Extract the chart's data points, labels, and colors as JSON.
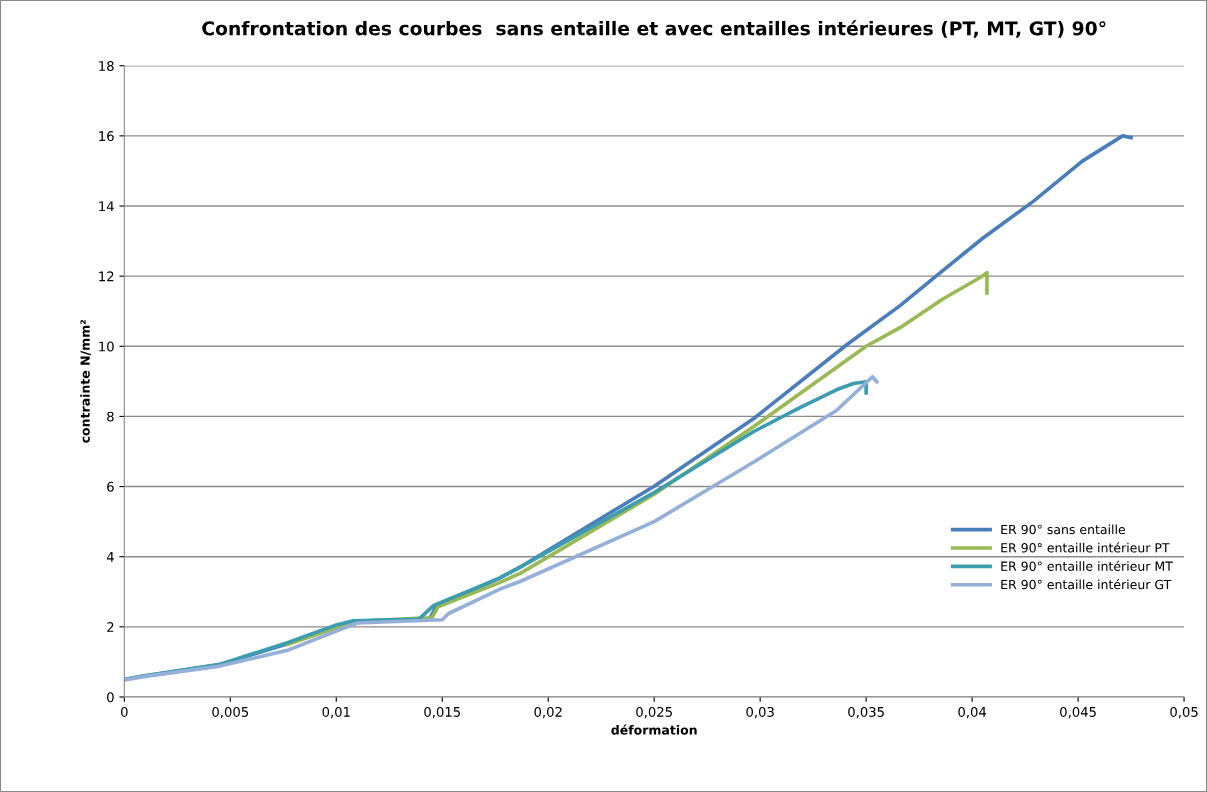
{
  "chart_data": {
    "type": "line",
    "title": "Confrontation des courbes  sans entaille et avec entailles intérieures (PT, MT, GT) 90°",
    "xlabel": "déformation",
    "ylabel": "contrainte N/mm²",
    "xlim": [
      0,
      0.05
    ],
    "xticks": [
      {
        "value": 0,
        "label": "0"
      },
      {
        "value": 0.005,
        "label": "0,005"
      },
      {
        "value": 0.01,
        "label": "0,01"
      },
      {
        "value": 0.015,
        "label": "0,015"
      },
      {
        "value": 0.02,
        "label": "0,02"
      },
      {
        "value": 0.025,
        "label": "0,025"
      },
      {
        "value": 0.03,
        "label": "0,03"
      },
      {
        "value": 0.035,
        "label": "0,035"
      },
      {
        "value": 0.04,
        "label": "0,04"
      },
      {
        "value": 0.045,
        "label": "0,045"
      },
      {
        "value": 0.05,
        "label": "0,05"
      }
    ],
    "ylim": [
      0,
      18
    ],
    "yticks": [
      0,
      2,
      4,
      6,
      8,
      10,
      12,
      14,
      16,
      18
    ],
    "grid": "y",
    "legend": "right",
    "marker": "none",
    "line_style": "solid",
    "series": [
      {
        "name": "ER 90° sans entaille",
        "color": "#4a7ebb",
        "x": [
          0,
          0.0009,
          0.0045,
          0.0077,
          0.01,
          0.0108,
          0.014,
          0.0144,
          0.0147,
          0.0177,
          0.0187,
          0.025,
          0.0297,
          0.0341,
          0.0366,
          0.0385,
          0.0405,
          0.0429,
          0.0452,
          0.0471,
          0.0475
        ],
        "values": [
          0.5,
          0.6,
          0.92,
          1.52,
          2.0,
          2.15,
          2.22,
          2.22,
          2.57,
          3.39,
          3.71,
          6.01,
          7.94,
          10.05,
          11.16,
          12.1,
          13.08,
          14.14,
          15.28,
          16.0,
          15.95
        ]
      },
      {
        "name": "ER 90° entaille intérieur PT",
        "color": "#98b954",
        "x": [
          0,
          0.0009,
          0.0045,
          0.0077,
          0.01,
          0.0108,
          0.014,
          0.0145,
          0.0148,
          0.0177,
          0.0187,
          0.025,
          0.0297,
          0.035,
          0.0366,
          0.0386,
          0.0404,
          0.0407,
          0.0407
        ],
        "values": [
          0.5,
          0.6,
          null,
          1.5,
          1.97,
          2.15,
          2.25,
          2.25,
          2.57,
          3.26,
          3.53,
          5.78,
          7.71,
          10.0,
          10.53,
          11.34,
          11.97,
          12.1,
          11.52
        ]
      },
      {
        "name": "ER 90° entaille intérieur MT",
        "color": "#3c9db0",
        "x": [
          0,
          0.0009,
          0.0045,
          0.0077,
          0.01,
          0.0108,
          0.0139,
          0.0146,
          0.0177,
          0.0187,
          0.025,
          0.0297,
          0.0319,
          0.0336,
          0.0344,
          0.035,
          0.035
        ],
        "values": [
          0.5,
          0.6,
          0.93,
          1.55,
          2.05,
          2.17,
          2.22,
          2.61,
          3.39,
          3.71,
          5.83,
          7.57,
          8.26,
          8.76,
          8.94,
          8.99,
          8.67
        ]
      },
      {
        "name": "ER 90° entaille intérieur GT",
        "color": "#95b0d8",
        "x": [
          0,
          0.0009,
          0.0045,
          0.0077,
          0.01,
          0.011,
          0.015,
          0.0153,
          0.0177,
          0.0187,
          0.025,
          0.0297,
          0.0336,
          0.0353,
          0.0355
        ],
        "values": [
          0.48,
          0.58,
          0.88,
          1.33,
          1.88,
          2.11,
          2.2,
          2.38,
          3.07,
          3.3,
          5.0,
          6.7,
          8.17,
          9.13,
          8.99
        ]
      }
    ]
  }
}
